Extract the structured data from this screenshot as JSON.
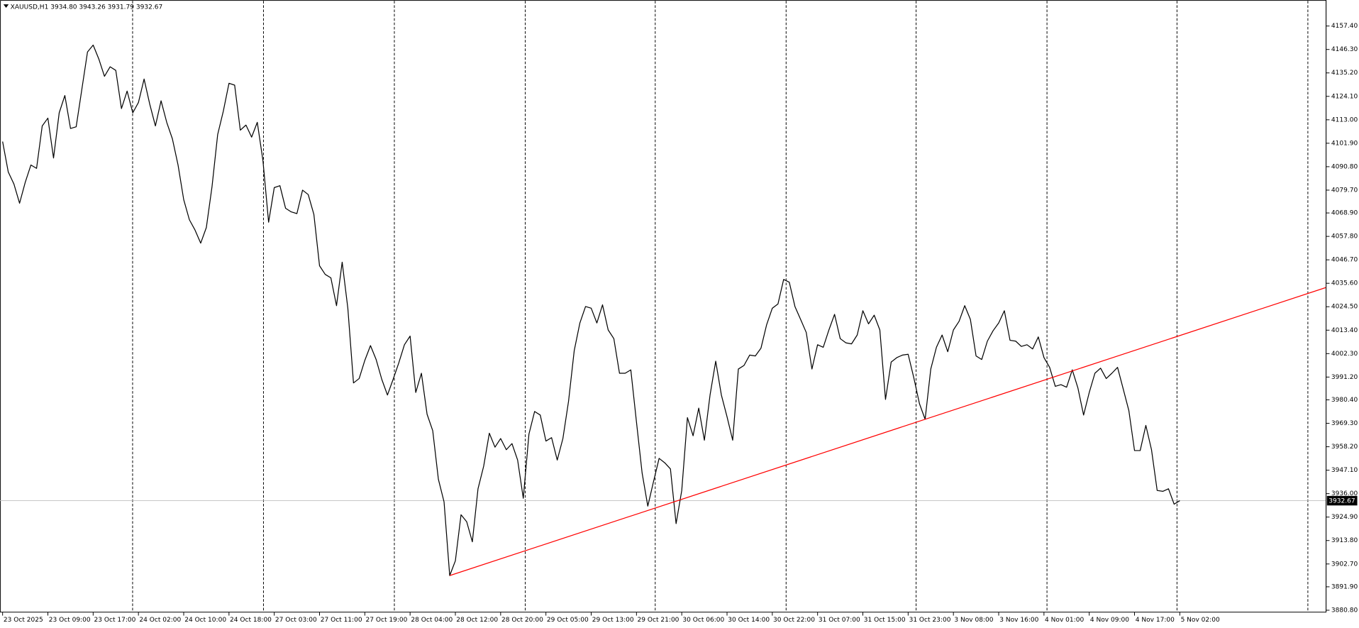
{
  "chart_data": {
    "type": "line",
    "title": "XAUUSD,H1  3934.80 3943.26 3931.79 3932.67",
    "color": "#000000",
    "categories": [
      "23 Oct 2025",
      null,
      null,
      null,
      null,
      null,
      null,
      null,
      "23 Oct 09:00",
      null,
      null,
      null,
      null,
      null,
      null,
      null,
      "23 Oct 17:00",
      null,
      null,
      null,
      null,
      null,
      null,
      null,
      "24 Oct 02:00",
      null,
      null,
      null,
      null,
      null,
      null,
      null,
      "24 Oct 10:00",
      null,
      null,
      null,
      null,
      null,
      null,
      null,
      "24 Oct 18:00",
      null,
      null,
      null,
      null,
      null,
      null,
      null,
      "27 Oct 03:00",
      null,
      null,
      null,
      null,
      null,
      null,
      null,
      "27 Oct 11:00",
      null,
      null,
      null,
      null,
      null,
      null,
      null,
      "27 Oct 19:00",
      null,
      null,
      null,
      null,
      null,
      null,
      null,
      "28 Oct 04:00",
      null,
      null,
      null,
      null,
      null,
      null,
      null,
      "28 Oct 12:00",
      null,
      null,
      null,
      null,
      null,
      null,
      null,
      "28 Oct 20:00",
      null,
      null,
      null,
      null,
      null,
      null,
      null,
      "29 Oct 05:00",
      null,
      null,
      null,
      null,
      null,
      null,
      null,
      "29 Oct 13:00",
      null,
      null,
      null,
      null,
      null,
      null,
      null,
      "29 Oct 21:00",
      null,
      null,
      null,
      null,
      null,
      null,
      null,
      "30 Oct 06:00",
      null,
      null,
      null,
      null,
      null,
      null,
      null,
      "30 Oct 14:00",
      null,
      null,
      null,
      null,
      null,
      null,
      null,
      "30 Oct 22:00",
      null,
      null,
      null,
      null,
      null,
      null,
      null,
      "31 Oct 07:00",
      null,
      null,
      null,
      null,
      null,
      null,
      null,
      "31 Oct 15:00",
      null,
      null,
      null,
      null,
      null,
      null,
      null,
      "31 Oct 23:00",
      null,
      null,
      null,
      null,
      null,
      null,
      null,
      "3 Nov 08:00",
      null,
      null,
      null,
      null,
      null,
      null,
      null,
      "3 Nov 16:00",
      null,
      null,
      null,
      null,
      null,
      null,
      null,
      "4 Nov 01:00",
      null,
      null,
      null,
      null,
      null,
      null,
      null,
      "4 Nov 09:00",
      null,
      null,
      null,
      null,
      null,
      null,
      null,
      "4 Nov 17:00",
      null,
      null,
      null,
      null,
      null,
      null,
      null,
      "5 Nov 02:00"
    ],
    "values": [
      4102.7,
      4088.3,
      4082.6,
      4073.5,
      4083.4,
      4091.6,
      4090.0,
      4110.1,
      4113.8,
      4094.9,
      4116.3,
      4124.5,
      4108.9,
      4109.7,
      4127.4,
      4145.1,
      4148.4,
      4141.8,
      4133.6,
      4138.1,
      4136.4,
      4118.3,
      4126.6,
      4116.3,
      4121.2,
      4132.3,
      4120.4,
      4110.1,
      4122.0,
      4111.8,
      4104.0,
      4091.6,
      4075.2,
      4065.7,
      4060.8,
      4054.6,
      4062.0,
      4081.3,
      4106.0,
      4117.1,
      4130.3,
      4129.4,
      4108.1,
      4110.5,
      4104.8,
      4111.8,
      4093.7,
      4064.5,
      4080.9,
      4081.8,
      4071.1,
      4069.4,
      4068.6,
      4079.7,
      4077.6,
      4068.2,
      4043.9,
      4039.8,
      4038.2,
      4025.0,
      4045.6,
      4023.8,
      3988.4,
      3990.5,
      3999.1,
      4006.1,
      3999.5,
      3990.1,
      3982.7,
      3990.1,
      3997.9,
      4006.5,
      4010.6,
      3983.9,
      3993.0,
      3973.6,
      3965.8,
      3942.8,
      3932.1,
      3897.2,
      3904.2,
      3926.0,
      3922.7,
      3913.2,
      3938.3,
      3949.0,
      3964.6,
      3958.0,
      3962.1,
      3956.8,
      3959.7,
      3951.9,
      3933.8,
      3964.2,
      3974.9,
      3973.2,
      3960.9,
      3962.5,
      3951.9,
      3962.1,
      3979.8,
      4003.7,
      4016.8,
      4024.6,
      4023.8,
      4016.8,
      4025.4,
      4013.5,
      4009.4,
      3993.0,
      3993.0,
      3994.6,
      3969.9,
      3945.7,
      3930.1,
      3941.6,
      3952.7,
      3950.6,
      3947.7,
      3921.8,
      3937.5,
      3972.0,
      3963.4,
      3976.5,
      3961.3,
      3982.7,
      3998.7,
      3982.7,
      3972.4,
      3961.3,
      3995.0,
      3996.7,
      4001.6,
      4001.2,
      4004.9,
      4016.0,
      4023.8,
      4025.8,
      4037.4,
      4036.1,
      4024.6,
      4018.5,
      4012.3,
      3995.0,
      4006.5,
      4005.3,
      4013.5,
      4020.9,
      4009.4,
      4007.4,
      4006.9,
      4011.1,
      4022.6,
      4016.4,
      4020.5,
      4013.5,
      3980.6,
      3998.3,
      4000.4,
      4001.6,
      4002.0,
      3990.9,
      3978.6,
      3971.2,
      3995.0,
      4005.3,
      4011.1,
      4003.2,
      4013.5,
      4017.6,
      4025.0,
      4018.5,
      4001.2,
      3999.5,
      4008.2,
      4013.1,
      4016.8,
      4022.6,
      4008.6,
      4008.2,
      4005.7,
      4006.5,
      4004.5,
      4010.2,
      4000.4,
      3995.8,
      3986.8,
      3987.6,
      3986.4,
      3994.6,
      3986.0,
      3973.2,
      3983.9,
      3993.0,
      3995.4,
      3990.5,
      3993.0,
      3995.8,
      3985.6,
      3975.3,
      3956.4,
      3956.4,
      3968.3,
      3956.8,
      3937.5,
      3937.1,
      3938.3,
      3931.0,
      3932.67
    ],
    "ylim": [
      3879.9,
      4168.9
    ],
    "yticks": [
      {
        "value": 3880.8,
        "label": "3880.80"
      },
      {
        "value": 3891.9,
        "label": "3891.90"
      },
      {
        "value": 3902.7,
        "label": "3902.70"
      },
      {
        "value": 3913.8,
        "label": "3913.80"
      },
      {
        "value": 3924.9,
        "label": "3924.90"
      },
      {
        "value": 3936.0,
        "label": "3936.00"
      },
      {
        "value": 3947.1,
        "label": "3947.10"
      },
      {
        "value": 3958.2,
        "label": "3958.20"
      },
      {
        "value": 3969.3,
        "label": "3969.30"
      },
      {
        "value": 3980.4,
        "label": "3980.40"
      },
      {
        "value": 3991.2,
        "label": "3991.20"
      },
      {
        "value": 4002.3,
        "label": "4002.30"
      },
      {
        "value": 4013.4,
        "label": "4013.40"
      },
      {
        "value": 4024.5,
        "label": "4024.50"
      },
      {
        "value": 4035.6,
        "label": "4035.60"
      },
      {
        "value": 4046.7,
        "label": "4046.70"
      },
      {
        "value": 4057.8,
        "label": "4057.80"
      },
      {
        "value": 4068.9,
        "label": "4068.90"
      },
      {
        "value": 4079.7,
        "label": "4079.70"
      },
      {
        "value": 4090.8,
        "label": "4090.80"
      },
      {
        "value": 4101.9,
        "label": "4101.90"
      },
      {
        "value": 4113.0,
        "label": "4113.00"
      },
      {
        "value": 4124.1,
        "label": "4124.10"
      },
      {
        "value": 4135.2,
        "label": "4135.20"
      },
      {
        "value": 4146.3,
        "label": "4146.30"
      },
      {
        "value": 4157.4,
        "label": "4157.40"
      }
    ],
    "last_price": 3932.67,
    "last_price_line_color": "#c0c0c0",
    "trendline": {
      "color": "#ff0000",
      "x": [
        79,
        163
      ],
      "values": [
        3897.2,
        3971.2
      ]
    }
  }
}
